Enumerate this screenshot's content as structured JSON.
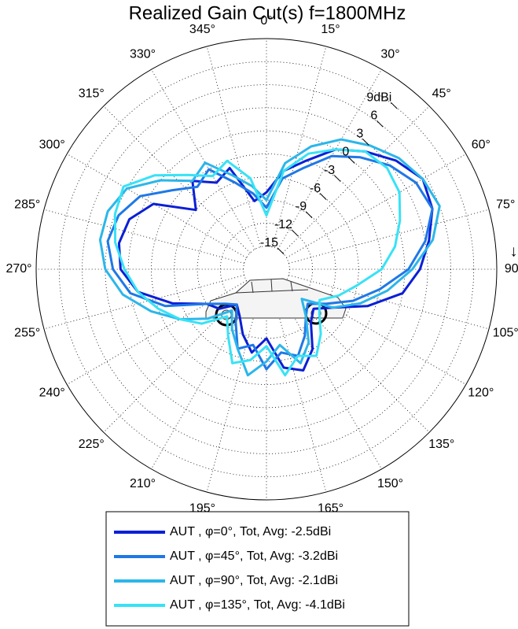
{
  "chart_data": {
    "type": "polar",
    "title": "Realized Gain Cut(s) f=1800MHz",
    "theta_label": "↓θ",
    "theta": [
      0,
      10,
      20,
      30,
      40,
      50,
      60,
      70,
      80,
      90,
      100,
      110,
      120,
      130,
      140,
      150,
      160,
      170,
      180,
      190,
      200,
      210,
      220,
      230,
      240,
      250,
      260,
      270,
      280,
      290,
      300,
      310,
      320,
      330,
      340,
      350
    ],
    "series": [
      {
        "name": "AUT , φ=0°, Tot, Avg: -2.5dBi",
        "color": "#0b1fd6",
        "values": [
          -8,
          -5,
          -3,
          0,
          2,
          4,
          5.5,
          5,
          3.5,
          2,
          0,
          -4,
          -8,
          -10,
          -9,
          -6,
          -4,
          -5,
          -9,
          -7,
          -9,
          -11,
          -12,
          -10,
          -9,
          -5,
          -1,
          1,
          1.5,
          1,
          -1,
          -6,
          -3,
          -5,
          -4,
          -9
        ]
      },
      {
        "name": "AUT , φ=45°, Tot, Avg: -3.2dBi",
        "color": "#1f78e6",
        "values": [
          -10,
          -6,
          -4,
          -1,
          1,
          3,
          4.5,
          5,
          3,
          0.5,
          -3,
          -6,
          -9,
          -11,
          -10,
          -8,
          -6,
          -7,
          -5,
          -8,
          -7,
          -10,
          -12,
          -11,
          -9,
          -4,
          0,
          2,
          3,
          2.5,
          1,
          -2,
          -4,
          -3,
          -6,
          -8
        ]
      },
      {
        "name": "AUT , φ=90°, Tot, Avg: -2.1dBi",
        "color": "#2cb6ea",
        "values": [
          -9,
          -4,
          -1,
          1.5,
          3,
          4.5,
          5.5,
          6,
          4,
          1,
          -2,
          -5,
          -8,
          -12,
          -10,
          -7,
          -5,
          -8,
          -6,
          -4,
          -7,
          -9,
          -11,
          -8,
          -5,
          -2,
          1,
          3,
          4,
          4,
          3,
          0,
          -3,
          -2,
          -5,
          -7
        ]
      },
      {
        "name": "AUT , φ=135°, Tot, Avg: -4.1dBi",
        "color": "#38e2f6",
        "values": [
          -11,
          -5,
          -2,
          0,
          2,
          2.5,
          2,
          0.5,
          -1,
          -3,
          -6,
          -8,
          -10,
          -9,
          -7,
          -5,
          -6,
          -4,
          -8,
          -6,
          -5,
          -8,
          -10,
          -7,
          -5,
          -3,
          -1,
          0.5,
          2,
          3,
          3.5,
          1,
          -2,
          -4,
          -3,
          -6
        ]
      }
    ],
    "rlim": [
      -18,
      12
    ],
    "rticks": [
      -15,
      -12,
      -9,
      -6,
      -3,
      0,
      3,
      6,
      {
        "value": 9,
        "label": "9dBi"
      }
    ],
    "thetaticks": [
      {
        "value": 0,
        "label": "0°"
      },
      {
        "value": 15,
        "label": "15°"
      },
      {
        "value": 30,
        "label": "30°"
      },
      {
        "value": 45,
        "label": "45°"
      },
      {
        "value": 60,
        "label": "60°"
      },
      {
        "value": 75,
        "label": "75°"
      },
      {
        "value": 90,
        "label": "90°"
      },
      {
        "value": 105,
        "label": "105°"
      },
      {
        "value": 120,
        "label": "120°"
      },
      {
        "value": 135,
        "label": "135°"
      },
      {
        "value": 150,
        "label": "150°"
      },
      {
        "value": 165,
        "label": "165°"
      },
      {
        "value": 180,
        "label": "180°"
      },
      {
        "value": 195,
        "label": "195°"
      },
      {
        "value": 210,
        "label": "210°"
      },
      {
        "value": 225,
        "label": "225°"
      },
      {
        "value": 240,
        "label": "240°"
      },
      {
        "value": 255,
        "label": "255°"
      },
      {
        "value": 270,
        "label": "270°"
      },
      {
        "value": 285,
        "label": "285°"
      },
      {
        "value": 300,
        "label": "300°"
      },
      {
        "value": 315,
        "label": "315°"
      },
      {
        "value": 330,
        "label": "330°"
      },
      {
        "value": 345,
        "label": "345°"
      }
    ],
    "grid": true,
    "legend": "bottom"
  }
}
